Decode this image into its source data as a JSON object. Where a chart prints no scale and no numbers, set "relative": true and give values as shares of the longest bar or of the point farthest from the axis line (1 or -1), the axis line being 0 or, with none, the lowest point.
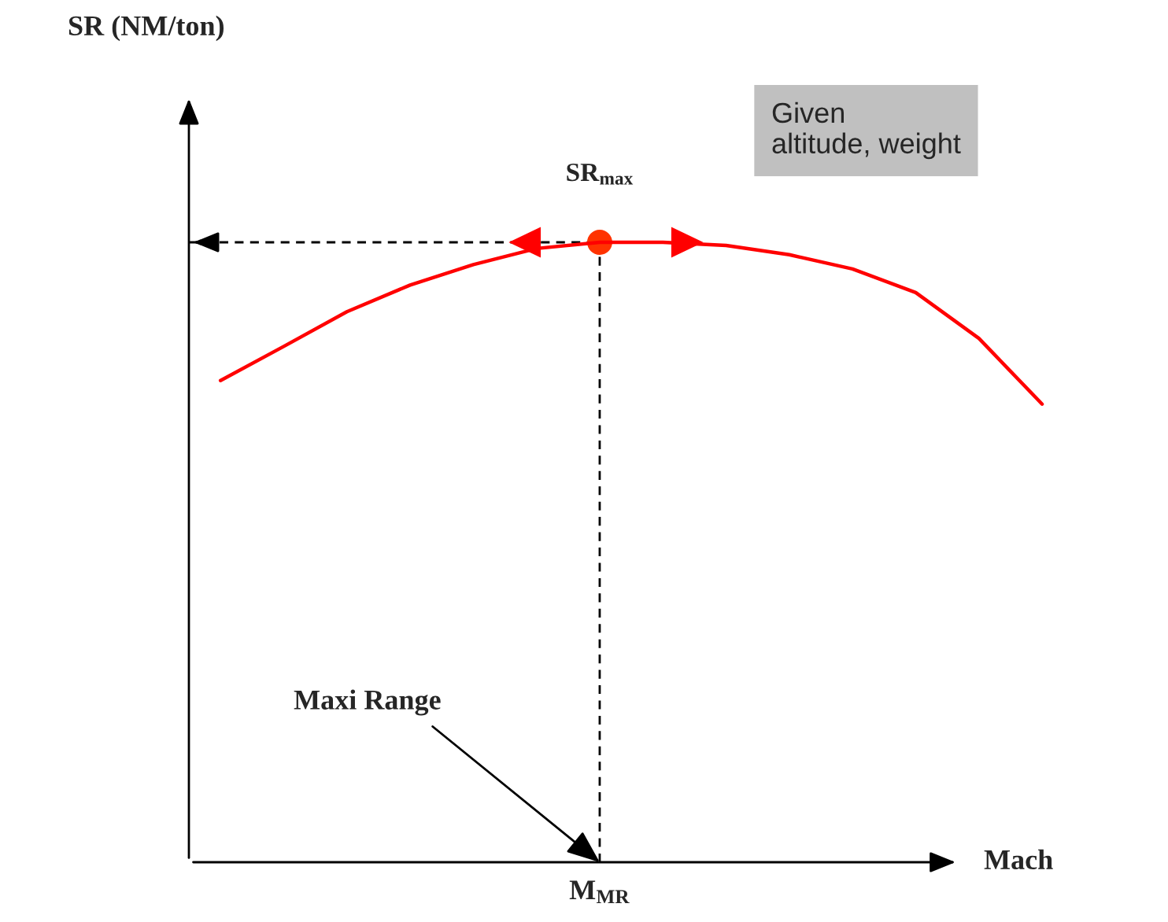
{
  "chart_data": {
    "type": "line",
    "relative": true,
    "xlabel": "Mach",
    "categories": [
      null,
      null,
      null,
      null,
      null,
      null,
      null,
      null,
      null,
      null,
      null,
      null,
      null,
      null
    ],
    "series": [
      {
        "color": "#ff0000",
        "values": [
          0.777,
          0.832,
          0.888,
          0.931,
          0.964,
          0.99,
          1.0,
          1.0,
          0.995,
          0.98,
          0.957,
          0.919,
          0.845,
          0.739
        ]
      }
    ],
    "ref_lines": [
      {
        "axis": "y",
        "value": 1.0,
        "color": "#000000",
        "line_style": "dashed"
      }
    ],
    "annotations": [
      "Given\naltitude, weight",
      "SR$_{max}$",
      "M$_{MR}$",
      "Maxi Range",
      "SR (NM/ton)"
    ],
    "legend": false
  }
}
